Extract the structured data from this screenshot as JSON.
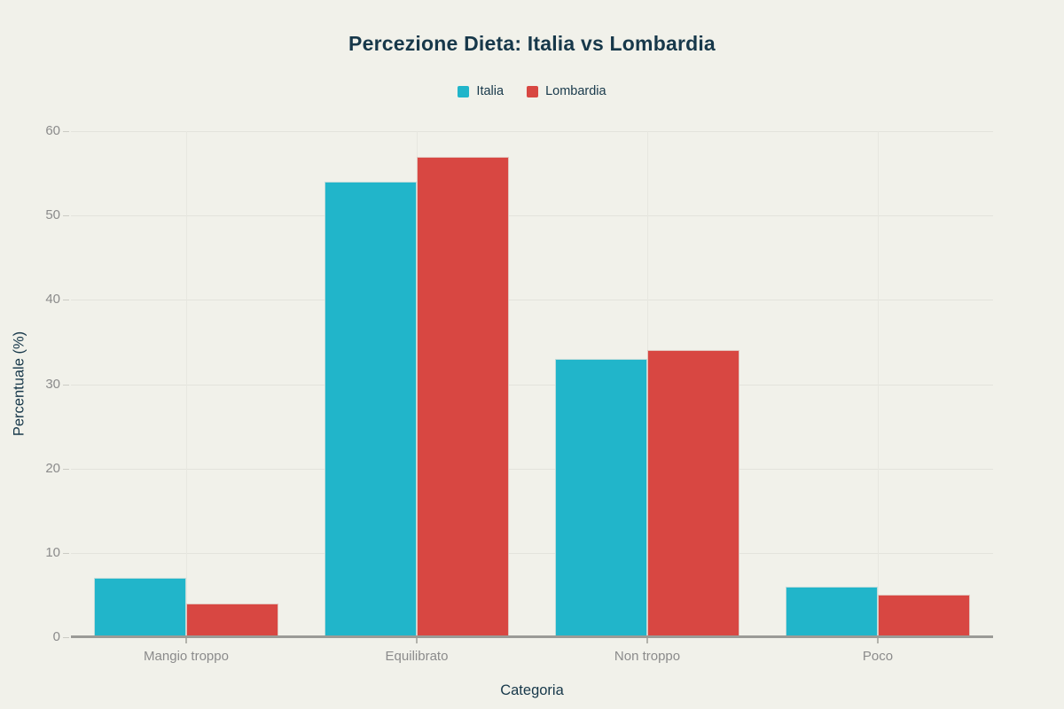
{
  "chart_data": {
    "type": "bar",
    "title": "Percezione Dieta: Italia vs Lombardia",
    "xlabel": "Categoria",
    "ylabel": "Percentuale (%)",
    "categories": [
      "Mangio troppo",
      "Equilibrato",
      "Non troppo",
      "Poco"
    ],
    "series": [
      {
        "name": "Italia",
        "color": "#21b5ca",
        "values": [
          7,
          54,
          33,
          6
        ]
      },
      {
        "name": "Lombardia",
        "color": "#d84742",
        "values": [
          4,
          57,
          34,
          5
        ]
      }
    ],
    "ylim": [
      0,
      60
    ],
    "ytick_step": 10,
    "grid": true,
    "legend_position": "top-center",
    "colors": {
      "background": "#f1f1ea",
      "text_dark": "#17384a",
      "tick_label": "#8b8b8b",
      "gridline": "#e3e3dc",
      "axis_line": "#9b9b97"
    }
  }
}
